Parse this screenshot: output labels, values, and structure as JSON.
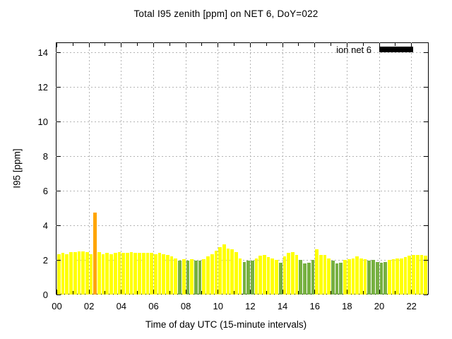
{
  "chart_data": {
    "type": "bar",
    "title": "Total I95 zenith [ppm] on NET 6, DoY=022",
    "xlabel": "Time of day UTC (15-minute intervals)",
    "ylabel": "I95 [ppm]",
    "legend": [
      {
        "label": "ion net 6",
        "swatch_color": "#000000"
      }
    ],
    "ylim": [
      0,
      14.6
    ],
    "xlim_hours": [
      0,
      23
    ],
    "yticks": [
      0,
      2,
      4,
      6,
      8,
      10,
      12,
      14
    ],
    "xticks": [
      "00",
      "02",
      "04",
      "06",
      "08",
      "10",
      "12",
      "14",
      "16",
      "18",
      "20",
      "22"
    ],
    "grid": "dashed-gray-on-even-hours-and-ytick-levels",
    "interval_minutes": 15,
    "bar_colors": {
      "y": "#ffff00",
      "g": "#76b041",
      "o": "#ffa500"
    },
    "bar_color_meaning": {
      "y": "normal",
      "g": "reduced",
      "o": "spike"
    },
    "series": [
      {
        "name": "ion net 6",
        "points": [
          [
            "00:00",
            2.35,
            "y"
          ],
          [
            "00:15",
            2.4,
            "y"
          ],
          [
            "00:30",
            2.35,
            "y"
          ],
          [
            "00:45",
            2.45,
            "y"
          ],
          [
            "01:00",
            2.45,
            "y"
          ],
          [
            "01:15",
            2.5,
            "y"
          ],
          [
            "01:30",
            2.5,
            "y"
          ],
          [
            "01:45",
            2.45,
            "y"
          ],
          [
            "02:00",
            2.35,
            "y"
          ],
          [
            "02:15",
            4.75,
            "o"
          ],
          [
            "02:30",
            2.45,
            "y"
          ],
          [
            "02:45",
            2.35,
            "y"
          ],
          [
            "03:00",
            2.4,
            "y"
          ],
          [
            "03:15",
            2.35,
            "y"
          ],
          [
            "03:30",
            2.4,
            "y"
          ],
          [
            "03:45",
            2.45,
            "y"
          ],
          [
            "04:00",
            2.4,
            "y"
          ],
          [
            "04:15",
            2.4,
            "y"
          ],
          [
            "04:30",
            2.45,
            "y"
          ],
          [
            "04:45",
            2.4,
            "y"
          ],
          [
            "05:00",
            2.4,
            "y"
          ],
          [
            "05:15",
            2.4,
            "y"
          ],
          [
            "05:30",
            2.4,
            "y"
          ],
          [
            "05:45",
            2.4,
            "y"
          ],
          [
            "06:00",
            2.35,
            "y"
          ],
          [
            "06:15",
            2.4,
            "y"
          ],
          [
            "06:30",
            2.35,
            "y"
          ],
          [
            "06:45",
            2.3,
            "y"
          ],
          [
            "07:00",
            2.2,
            "y"
          ],
          [
            "07:15",
            2.1,
            "y"
          ],
          [
            "07:30",
            1.95,
            "g"
          ],
          [
            "07:45",
            2.05,
            "y"
          ],
          [
            "08:00",
            1.95,
            "g"
          ],
          [
            "08:15",
            2.05,
            "y"
          ],
          [
            "08:30",
            1.95,
            "g"
          ],
          [
            "08:45",
            1.95,
            "g"
          ],
          [
            "09:00",
            2.05,
            "y"
          ],
          [
            "09:15",
            2.2,
            "y"
          ],
          [
            "09:30",
            2.35,
            "y"
          ],
          [
            "09:45",
            2.55,
            "y"
          ],
          [
            "10:00",
            2.75,
            "y"
          ],
          [
            "10:15",
            2.9,
            "y"
          ],
          [
            "10:30",
            2.65,
            "y"
          ],
          [
            "10:45",
            2.6,
            "y"
          ],
          [
            "11:00",
            2.45,
            "y"
          ],
          [
            "11:15",
            2.1,
            "y"
          ],
          [
            "11:30",
            1.9,
            "g"
          ],
          [
            "11:45",
            1.95,
            "g"
          ],
          [
            "12:00",
            1.95,
            "g"
          ],
          [
            "12:15",
            2.1,
            "y"
          ],
          [
            "12:30",
            2.25,
            "y"
          ],
          [
            "12:45",
            2.3,
            "y"
          ],
          [
            "13:00",
            2.15,
            "y"
          ],
          [
            "13:15",
            2.1,
            "y"
          ],
          [
            "13:30",
            2.0,
            "y"
          ],
          [
            "13:45",
            1.85,
            "g"
          ],
          [
            "14:00",
            2.2,
            "y"
          ],
          [
            "14:15",
            2.4,
            "y"
          ],
          [
            "14:30",
            2.45,
            "y"
          ],
          [
            "14:45",
            2.3,
            "y"
          ],
          [
            "15:00",
            2.0,
            "g"
          ],
          [
            "15:15",
            1.8,
            "g"
          ],
          [
            "15:30",
            1.85,
            "g"
          ],
          [
            "15:45",
            2.0,
            "g"
          ],
          [
            "16:00",
            2.6,
            "y"
          ],
          [
            "16:15",
            2.3,
            "y"
          ],
          [
            "16:30",
            2.3,
            "y"
          ],
          [
            "16:45",
            2.1,
            "y"
          ],
          [
            "17:00",
            1.95,
            "g"
          ],
          [
            "17:15",
            1.8,
            "g"
          ],
          [
            "17:30",
            1.85,
            "g"
          ],
          [
            "17:45",
            2.0,
            "y"
          ],
          [
            "18:00",
            2.05,
            "y"
          ],
          [
            "18:15",
            2.1,
            "y"
          ],
          [
            "18:30",
            2.2,
            "y"
          ],
          [
            "18:45",
            2.1,
            "y"
          ],
          [
            "19:00",
            2.05,
            "y"
          ],
          [
            "19:15",
            1.95,
            "g"
          ],
          [
            "19:30",
            2.0,
            "g"
          ],
          [
            "19:45",
            1.9,
            "g"
          ],
          [
            "20:00",
            1.85,
            "g"
          ],
          [
            "20:15",
            1.9,
            "g"
          ],
          [
            "20:30",
            2.0,
            "y"
          ],
          [
            "20:45",
            2.05,
            "y"
          ],
          [
            "21:00",
            2.1,
            "y"
          ],
          [
            "21:15",
            2.1,
            "y"
          ],
          [
            "21:30",
            2.15,
            "y"
          ],
          [
            "21:45",
            2.25,
            "y"
          ],
          [
            "22:00",
            2.3,
            "y"
          ],
          [
            "22:15",
            2.3,
            "y"
          ],
          [
            "22:30",
            2.3,
            "y"
          ],
          [
            "22:45",
            2.25,
            "y"
          ]
        ]
      }
    ]
  }
}
